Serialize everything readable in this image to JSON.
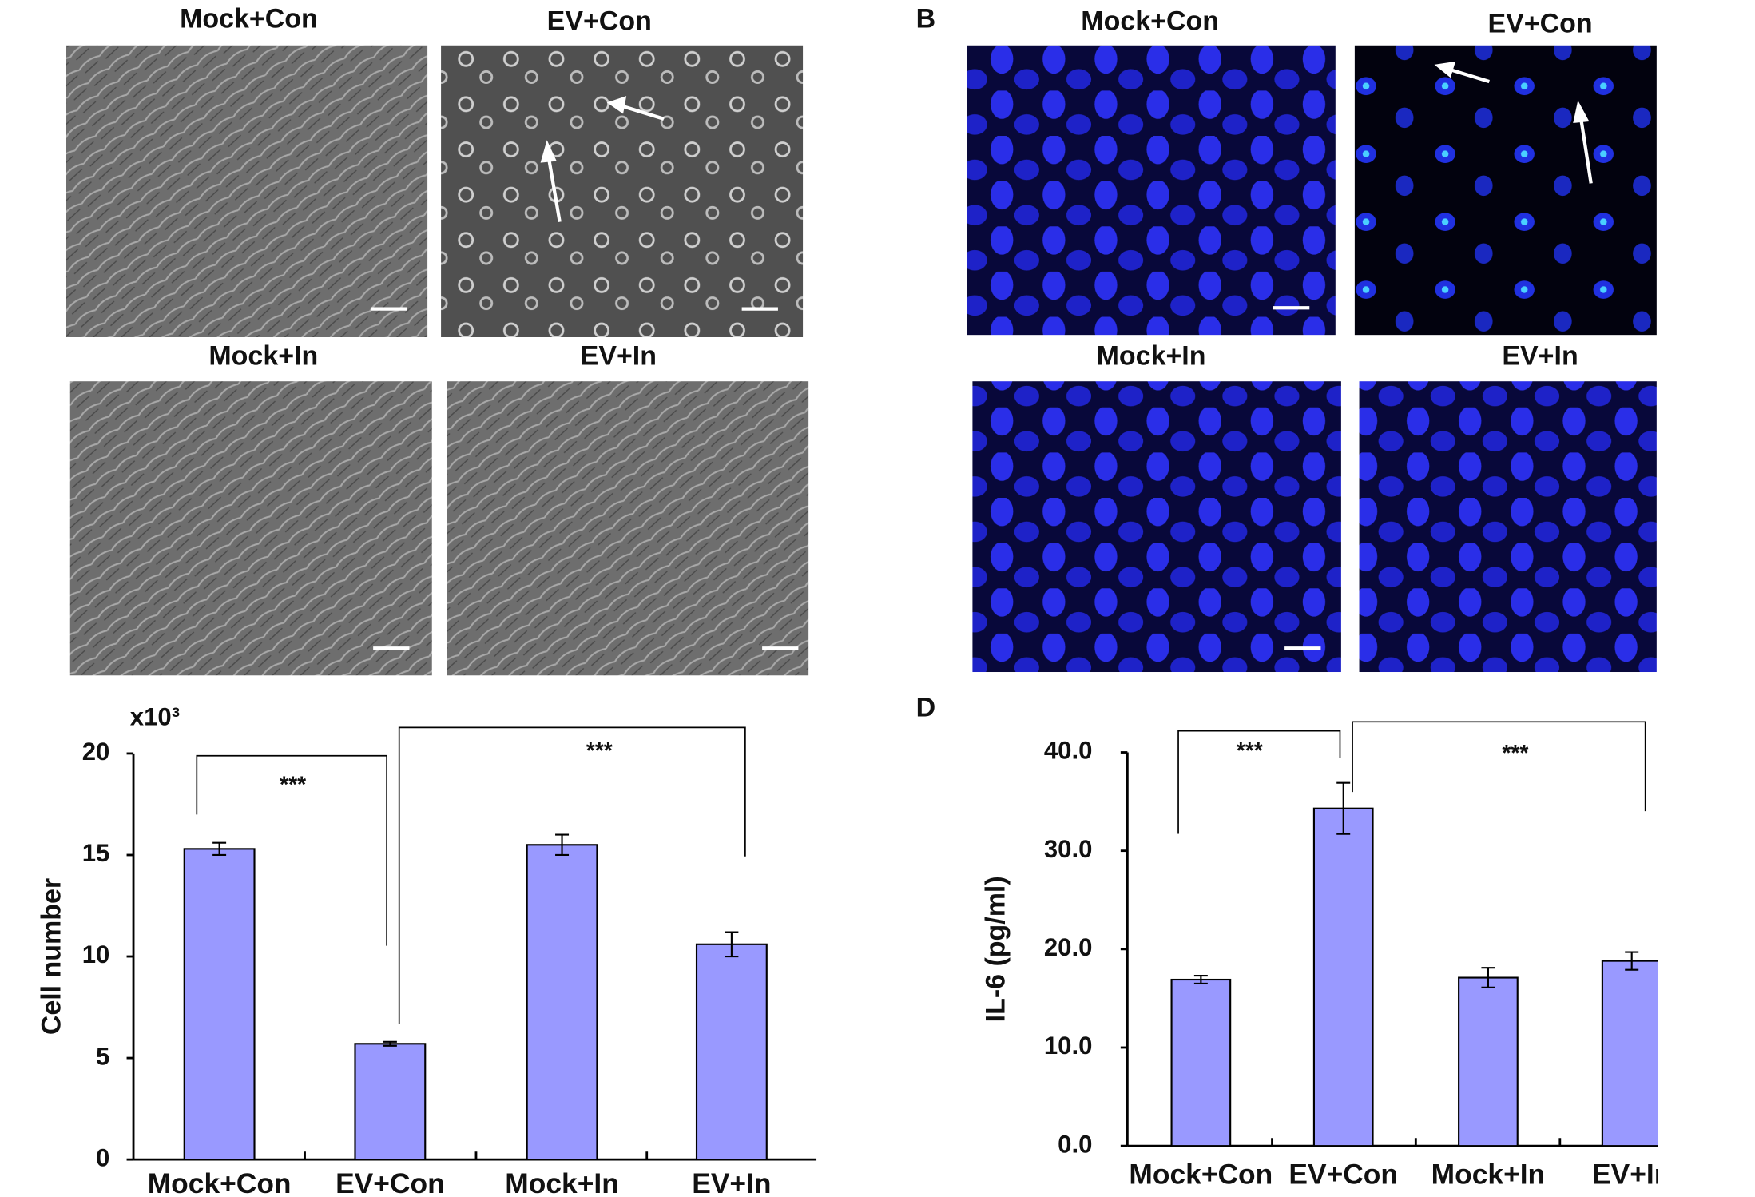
{
  "images": {
    "phase": {
      "titles": [
        "Mock+Con",
        "EV+Con",
        "Mock+In",
        "EV+In"
      ]
    },
    "fluorescence": {
      "label": "B",
      "titles": [
        "Mock+Con",
        "EV+Con",
        "Mock+In",
        "EV+In"
      ]
    }
  },
  "chart_data": [
    {
      "type": "bar",
      "y_unit": "x10³",
      "y_label": "Cell number",
      "categories": [
        "Mock+Con",
        "EV+Con",
        "Mock+In",
        "EV+In"
      ],
      "values": [
        15.3,
        5.7,
        15.5,
        10.6
      ],
      "errors": [
        0.3,
        0.1,
        0.5,
        0.6
      ],
      "color": "#9999ff",
      "ylim": [
        0,
        20
      ],
      "yticks": [
        0,
        5,
        10,
        15,
        20
      ],
      "annotations": [
        "***",
        "***"
      ]
    },
    {
      "type": "bar",
      "panel_label": "D",
      "y_label": "IL-6 (pg/ml)",
      "categories": [
        "Mock+Con",
        "EV+Con",
        "Mock+In",
        "EV+In"
      ],
      "values": [
        16.9,
        34.3,
        17.1,
        18.8
      ],
      "errors": [
        0.4,
        2.6,
        1.0,
        0.9
      ],
      "color": "#9999ff",
      "ylim": [
        0,
        40
      ],
      "yticks": [
        {
          "value": 0,
          "label": "0.0"
        },
        {
          "value": 10,
          "label": "10.0"
        },
        {
          "value": 20,
          "label": "20.0"
        },
        {
          "value": 30,
          "label": "30.0"
        },
        {
          "value": 40,
          "label": "40.0"
        }
      ],
      "annotations": [
        "***",
        "***"
      ]
    }
  ]
}
